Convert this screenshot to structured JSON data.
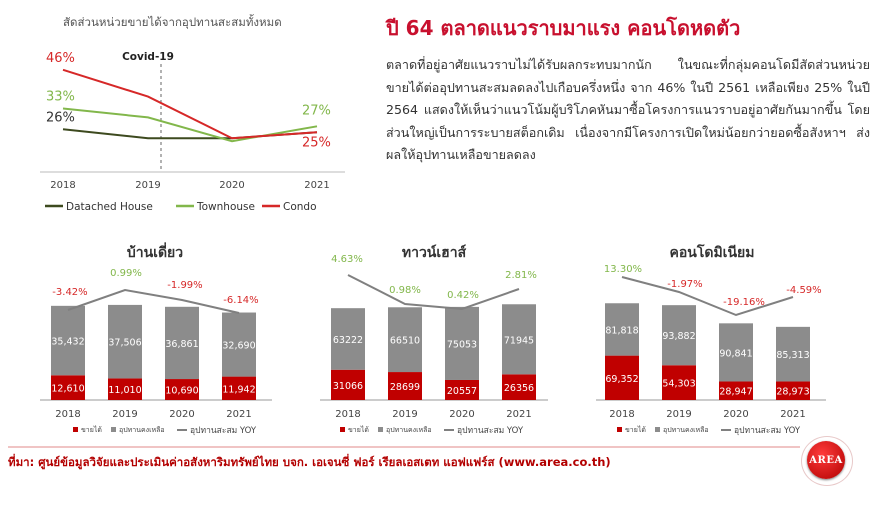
{
  "article": {
    "headline": "ปี 64 ตลาดแนวราบมาแรง คอนโดหดตัว",
    "body": "ตลาดที่อยู่อาศัยแนวราบไม่ได้รับผลกระทบมากนัก ในขณะที่กลุ่มคอนโดมีสัดส่วนหน่วยขายได้ต่ออุปทานสะสมลดลงไปเกือบครึ่งหนึ่ง จาก 46% ในปี 2561 เหลือเพียง 25% ในปี 2564 แสดงให้เห็นว่าแนวโน้มผู้บริโภคหันมาซื้อโครงการแนวราบอยู่อาศัยกันมากขึ้น โดยส่วนใหญ่เป็นการระบายสต็อกเดิม เนื่องจากมีโครงการเปิดใหม่น้อยกว่ายอดซื้อสังหาฯ ส่งผลให้อุปทานเหลือขายลดลง"
  },
  "source": "ที่มา: ศูนย์ข้อมูลวิจัยและประเมินค่าอสังหาริมทรัพย์ไทย บจก. เอเจนซี่ ฟอร์ เรียลเอสเตท แอฟแฟร์ส (www.area.co.th)",
  "logo_text": "AREA",
  "colors": {
    "detached": "#3d4a1f",
    "townhouse": "#82b74b",
    "condo": "#d62828",
    "sold": "#c00000",
    "supply": "#8c8c8c",
    "yoy": "#808080"
  },
  "chart_data": [
    {
      "type": "line",
      "title": "สัดส่วนหน่วยขายได้จากอุปทานสะสมทั้งหมด",
      "x": [
        "2018",
        "2019",
        "2020",
        "2021"
      ],
      "annotation": "Covid-19",
      "series": [
        {
          "name": "Datached House",
          "values": [
            26,
            23,
            23,
            25
          ],
          "labels": {
            "0": "26%"
          }
        },
        {
          "name": "Townhouse",
          "values": [
            33,
            30,
            22,
            27
          ],
          "labels": {
            "0": "33%",
            "3": "27%"
          }
        },
        {
          "name": "Condo",
          "values": [
            46,
            37,
            23,
            25
          ],
          "labels": {
            "0": "46%",
            "3": "25%"
          }
        }
      ],
      "ylim": [
        15,
        52
      ]
    },
    {
      "type": "bar",
      "title": "บ้านเดี่ยว",
      "categories": [
        "2018",
        "2019",
        "2020",
        "2021"
      ],
      "series": [
        {
          "name": "ขายได้",
          "values": [
            12610,
            11010,
            10690,
            11942
          ],
          "labels": [
            "12,610",
            "11,010",
            "10,690",
            "11,942"
          ]
        },
        {
          "name": "อุปทานคงเหลือ",
          "values": [
            35432,
            37506,
            36861,
            32690
          ],
          "labels": [
            "35,432",
            "37,506",
            "36,861",
            "32,690"
          ]
        }
      ],
      "yoy": {
        "name": "อุปทานสะสม YOY",
        "values": [
          -3.42,
          0.99,
          -1.99,
          -6.14
        ],
        "labels": [
          "-3.42%",
          "0.99%",
          "-1.99%",
          "-6.14%"
        ]
      },
      "ymax": 160000
    },
    {
      "type": "bar",
      "title": "ทาวน์เฮาส์",
      "categories": [
        "2018",
        "2019",
        "2020",
        "2021"
      ],
      "series": [
        {
          "name": "ขายได้",
          "values": [
            31066,
            28699,
            20557,
            26356
          ],
          "labels": [
            "31066",
            "28699",
            "20557",
            "26356"
          ]
        },
        {
          "name": "อุปทานคงเหลือ",
          "values": [
            63222,
            66510,
            75053,
            71945
          ],
          "labels": [
            "63222",
            "66510",
            "75053",
            "71945"
          ]
        }
      ],
      "yoy": {
        "name": "อุปทานสะสม YOY",
        "values": [
          4.63,
          0.98,
          0.42,
          2.81
        ],
        "labels": [
          "4.63%",
          "0.98%",
          "0.42%",
          "2.81%"
        ]
      },
      "ymax": 322000
    },
    {
      "type": "bar",
      "title": "คอนโดมิเนียม",
      "categories": [
        "2018",
        "2019",
        "2020",
        "2021"
      ],
      "series": [
        {
          "name": "ขายได้",
          "values": [
            69352,
            54303,
            28947,
            28973
          ],
          "labels": [
            "69,352",
            "54,303",
            "28,947",
            "28,973"
          ]
        },
        {
          "name": "อุปทานคงเหลือ",
          "values": [
            81818,
            93882,
            90841,
            85313
          ],
          "labels": [
            "81,818",
            "93,882",
            "90,841",
            "85,313"
          ]
        }
      ],
      "yoy": {
        "name": "อุปทานสะสม YOY",
        "values": [
          13.3,
          -1.97,
          -19.16,
          -4.59
        ],
        "labels": [
          "13.30%",
          "-1.97%",
          "-19.16%",
          "-4.59%"
        ]
      },
      "ymax": 490000
    }
  ]
}
